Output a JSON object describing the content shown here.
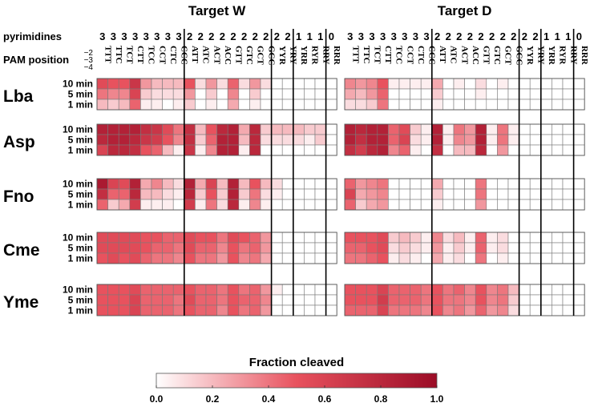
{
  "chart_data": {
    "type": "heatmap",
    "panels": [
      {
        "title": "Target W",
        "pyrimidines": [
          "3",
          "3",
          "3",
          "3",
          "3",
          "3",
          "3",
          "3",
          "2",
          "2",
          "2",
          "2",
          "2",
          "2",
          "2",
          "2",
          "2",
          "2",
          "1",
          "1",
          "1",
          "0"
        ]
      },
      {
        "title": "Target D",
        "pyrimidines": [
          "3",
          "3",
          "3",
          "3",
          "3",
          "3",
          "3",
          "3",
          "2",
          "2",
          "2",
          "2",
          "2",
          "2",
          "2",
          "2",
          "2",
          "2",
          "1",
          "1",
          "1",
          "0"
        ]
      }
    ],
    "row_header_label": "pyrimidines",
    "pam_label": "PAM position",
    "pam_positions": [
      "−2",
      "−3",
      "−4"
    ],
    "pams": [
      "TTT",
      "TTC",
      "TCT",
      "CTT",
      "TCC",
      "CCT",
      "CTC",
      "CCC",
      "ATT",
      "ATC",
      "ACT",
      "ACC",
      "GTT",
      "GTC",
      "GCT",
      "GCC",
      "YYR",
      "YRY",
      "YRR",
      "RYR",
      "RRY",
      "RRR"
    ],
    "time_points": [
      "10 min",
      "5 min",
      "1 min"
    ],
    "colorbar": {
      "label": "Fraction cleaved",
      "min": 0.0,
      "max": 1.0,
      "ticks": [
        "0.0",
        "0.2",
        "0.4",
        "0.6",
        "0.8",
        "1.0"
      ],
      "low_color": "#ffffff",
      "mid_color": "#e8525e",
      "high_color": "#9b0c26"
    },
    "enzymes": [
      {
        "name": "Lba",
        "data": [
          [
            [
              0.55,
              0.5,
              0.5,
              0.7,
              0.3,
              0.2,
              0.2,
              0.2,
              0.5,
              0.1,
              0.3,
              0.1,
              0.45,
              0.1,
              0.3,
              0.1,
              0,
              0,
              0,
              0,
              0,
              0
            ],
            [
              0.4,
              0.35,
              0.35,
              0.6,
              0.15,
              0.1,
              0.1,
              0.1,
              0.3,
              0,
              0.15,
              0,
              0.35,
              0,
              0.15,
              0,
              0,
              0,
              0,
              0,
              0,
              0
            ],
            [
              0.2,
              0.15,
              0.2,
              0.45,
              0.05,
              0.05,
              0,
              0.05,
              0.15,
              0,
              0.05,
              0,
              0.25,
              0,
              0.05,
              0,
              0,
              0,
              0,
              0,
              0,
              0
            ]
          ],
          [
            [
              0.35,
              0.3,
              0.35,
              0.5,
              0.05,
              0.05,
              0.05,
              0.05,
              0.25,
              0,
              0.05,
              0,
              0.1,
              0,
              0.05,
              0,
              0,
              0,
              0,
              0,
              0,
              0
            ],
            [
              0.25,
              0.2,
              0.3,
              0.45,
              0,
              0,
              0,
              0,
              0.15,
              0,
              0,
              0,
              0.05,
              0,
              0,
              0,
              0,
              0,
              0,
              0,
              0,
              0
            ],
            [
              0.1,
              0.1,
              0.15,
              0.4,
              0,
              0,
              0,
              0,
              0.05,
              0,
              0,
              0,
              0,
              0,
              0,
              0,
              0,
              0,
              0,
              0,
              0,
              0
            ]
          ]
        ]
      },
      {
        "name": "Asp",
        "data": [
          [
            [
              0.85,
              0.85,
              0.85,
              0.85,
              0.75,
              0.7,
              0.55,
              0.4,
              0.75,
              0.2,
              0.5,
              0.8,
              0.85,
              0.25,
              0.8,
              0.15,
              0.2,
              0.2,
              0.2,
              0.15,
              0.15,
              0
            ],
            [
              0.8,
              0.85,
              0.85,
              0.8,
              0.7,
              0.65,
              0.5,
              0.35,
              0.75,
              0.15,
              0.45,
              0.85,
              0.85,
              0.2,
              0.8,
              0.1,
              0.1,
              0.1,
              0.1,
              0.05,
              0.15,
              0
            ],
            [
              0.6,
              0.8,
              0.8,
              0.75,
              0.5,
              0.45,
              0.2,
              0.05,
              0.7,
              0.05,
              0.35,
              0.85,
              0.85,
              0.05,
              0.8,
              0,
              0,
              0,
              0,
              0,
              0,
              0
            ]
          ],
          [
            [
              0.85,
              0.8,
              0.85,
              0.85,
              0.45,
              0.55,
              0.15,
              0.05,
              0.85,
              0.05,
              0.4,
              0.3,
              0.85,
              0.05,
              0.4,
              0.05,
              0,
              0,
              0,
              0,
              0,
              0
            ],
            [
              0.85,
              0.75,
              0.85,
              0.85,
              0.45,
              0.6,
              0.1,
              0.05,
              0.85,
              0.05,
              0.35,
              0.3,
              0.85,
              0.05,
              0.4,
              0.05,
              0,
              0,
              0,
              0,
              0,
              0
            ],
            [
              0.75,
              0.65,
              0.8,
              0.85,
              0.35,
              0.45,
              0.05,
              0,
              0.75,
              0,
              0.2,
              0.2,
              0.8,
              0,
              0.3,
              0,
              0,
              0,
              0,
              0,
              0,
              0
            ]
          ]
        ]
      },
      {
        "name": "Fno",
        "data": [
          [
            [
              0.9,
              0.6,
              0.55,
              0.85,
              0.25,
              0.35,
              0.2,
              0.1,
              0.85,
              0.25,
              0.6,
              0.2,
              0.85,
              0.2,
              0.5,
              0.2,
              0.1,
              0,
              0,
              0,
              0,
              0
            ],
            [
              0.75,
              0.45,
              0.45,
              0.8,
              0.2,
              0.2,
              0.1,
              0.05,
              0.8,
              0.15,
              0.5,
              0.15,
              0.85,
              0.15,
              0.4,
              0.1,
              0.05,
              0,
              0,
              0,
              0,
              0
            ],
            [
              0.45,
              0.15,
              0.25,
              0.65,
              0.05,
              0.05,
              0.05,
              0,
              0.65,
              0.05,
              0.4,
              0.1,
              0.8,
              0.05,
              0.35,
              0.05,
              0,
              0,
              0,
              0,
              0,
              0
            ]
          ],
          [
            [
              0.45,
              0.3,
              0.35,
              0.4,
              0,
              0,
              0,
              0,
              0.25,
              0,
              0,
              0,
              0.4,
              0,
              0,
              0,
              0,
              0,
              0,
              0,
              0,
              0
            ],
            [
              0.6,
              0.25,
              0.3,
              0.35,
              0,
              0,
              0,
              0,
              0.15,
              0,
              0,
              0,
              0.4,
              0,
              0,
              0,
              0,
              0,
              0,
              0,
              0,
              0
            ],
            [
              0.45,
              0.15,
              0.25,
              0.3,
              0,
              0,
              0,
              0,
              0.05,
              0,
              0,
              0,
              0.3,
              0,
              0,
              0,
              0,
              0,
              0,
              0,
              0,
              0
            ]
          ]
        ]
      },
      {
        "name": "Cme",
        "data": [
          [
            [
              0.55,
              0.55,
              0.55,
              0.55,
              0.5,
              0.5,
              0.45,
              0.45,
              0.55,
              0.5,
              0.5,
              0.4,
              0.55,
              0.5,
              0.45,
              0.3,
              0,
              0,
              0,
              0,
              0,
              0
            ],
            [
              0.55,
              0.55,
              0.55,
              0.55,
              0.5,
              0.45,
              0.45,
              0.4,
              0.55,
              0.45,
              0.45,
              0.35,
              0.5,
              0.4,
              0.45,
              0.3,
              0,
              0,
              0,
              0,
              0,
              0
            ],
            [
              0.5,
              0.55,
              0.5,
              0.55,
              0.45,
              0.4,
              0.4,
              0.35,
              0.5,
              0.4,
              0.4,
              0.3,
              0.5,
              0.35,
              0.4,
              0.25,
              0,
              0,
              0,
              0,
              0,
              0
            ]
          ],
          [
            [
              0.5,
              0.5,
              0.5,
              0.55,
              0.15,
              0.2,
              0.15,
              0.05,
              0.35,
              0.1,
              0.2,
              0.05,
              0.45,
              0.05,
              0.1,
              0,
              0,
              0,
              0,
              0,
              0,
              0
            ],
            [
              0.45,
              0.45,
              0.5,
              0.55,
              0.1,
              0.15,
              0.1,
              0.05,
              0.3,
              0.05,
              0.15,
              0.05,
              0.45,
              0.05,
              0.1,
              0,
              0,
              0,
              0,
              0,
              0,
              0
            ],
            [
              0.4,
              0.4,
              0.45,
              0.5,
              0.05,
              0.1,
              0.05,
              0,
              0.25,
              0.05,
              0.1,
              0,
              0.4,
              0,
              0.05,
              0,
              0,
              0,
              0,
              0,
              0,
              0
            ]
          ]
        ]
      },
      {
        "name": "Yme",
        "data": [
          [
            [
              0.5,
              0.5,
              0.5,
              0.55,
              0.45,
              0.45,
              0.45,
              0.45,
              0.5,
              0.45,
              0.45,
              0.4,
              0.5,
              0.4,
              0.45,
              0.3,
              0.05,
              0,
              0,
              0,
              0,
              0
            ],
            [
              0.5,
              0.5,
              0.5,
              0.6,
              0.45,
              0.45,
              0.45,
              0.4,
              0.55,
              0.45,
              0.45,
              0.4,
              0.5,
              0.45,
              0.45,
              0.35,
              0,
              0,
              0,
              0,
              0,
              0
            ],
            [
              0.5,
              0.5,
              0.5,
              0.6,
              0.45,
              0.45,
              0.45,
              0.4,
              0.5,
              0.45,
              0.45,
              0.35,
              0.5,
              0.4,
              0.45,
              0.3,
              0,
              0,
              0,
              0,
              0,
              0
            ]
          ],
          [
            [
              0.5,
              0.5,
              0.5,
              0.6,
              0.45,
              0.45,
              0.45,
              0.4,
              0.5,
              0.4,
              0.45,
              0.35,
              0.5,
              0.35,
              0.4,
              0.2,
              0,
              0,
              0,
              0,
              0,
              0
            ],
            [
              0.5,
              0.5,
              0.5,
              0.65,
              0.45,
              0.45,
              0.45,
              0.4,
              0.5,
              0.4,
              0.4,
              0.35,
              0.5,
              0.35,
              0.4,
              0.15,
              0,
              0,
              0,
              0,
              0,
              0
            ],
            [
              0.45,
              0.45,
              0.45,
              0.6,
              0.4,
              0.4,
              0.4,
              0.35,
              0.5,
              0.35,
              0.4,
              0.3,
              0.45,
              0.3,
              0.35,
              0.1,
              0,
              0,
              0,
              0,
              0,
              0
            ]
          ]
        ]
      }
    ]
  }
}
